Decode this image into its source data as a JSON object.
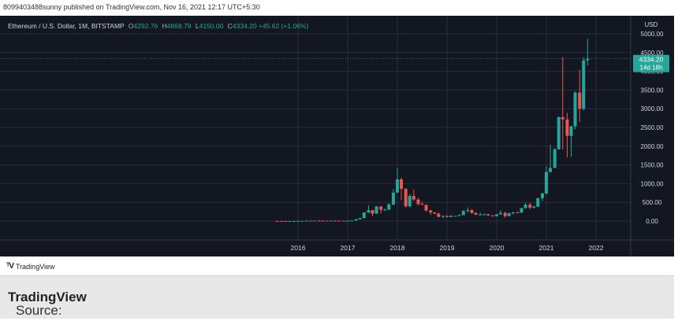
{
  "header": {
    "publisher": "8099403488sunny published on TradingView.com, Nov 16, 2021 12:17 UTC+5:30"
  },
  "legend": {
    "symbol": "Ethereum / U.S. Dollar, 1M, BITSTAMP",
    "o_label": "O",
    "o_value": "4292.76",
    "h_label": "H",
    "h_value": "4868.79",
    "l_label": "L",
    "l_value": "4150.00",
    "c_label": "C",
    "c_value": "4334.20",
    "change": "+45.62 (+1.06%)"
  },
  "price_tag": {
    "price": "4334.20",
    "countdown": "14d 18h"
  },
  "footer": {
    "brand": "TradingView"
  },
  "source": {
    "prefix": "Source: ",
    "name": "TradingView"
  },
  "colors": {
    "up": "#26a69a",
    "down": "#ef5350",
    "bg": "#131722",
    "grid": "#2a2e39",
    "text": "#d1d4dc"
  },
  "chart_data": {
    "type": "candlestick",
    "currency": "USD",
    "ylim": [
      -500,
      5300
    ],
    "yticks": [
      0,
      500,
      1000,
      1500,
      2000,
      2500,
      3000,
      3500,
      4000,
      4500,
      5000
    ],
    "ytick_labels": [
      "0.00",
      "500.00",
      "1000.00",
      "1500.00",
      "2000.00",
      "2500.00",
      "3000.00",
      "3500.00",
      "4000.00",
      "4500.00",
      "5000.00"
    ],
    "xticks": [
      "2016",
      "2017",
      "2018",
      "2019",
      "2020",
      "2021",
      "2022"
    ],
    "xtick_pos": [
      2016.0,
      2017.0,
      2018.0,
      2019.0,
      2020.0,
      2021.0,
      2022.0
    ],
    "candles": [
      {
        "t": 2015.58,
        "o": 2.8,
        "h": 3,
        "l": 0.5,
        "c": 1.2
      },
      {
        "t": 2015.67,
        "o": 1.2,
        "h": 1.5,
        "l": 0.6,
        "c": 0.9
      },
      {
        "t": 2015.75,
        "o": 0.9,
        "h": 1.0,
        "l": 0.5,
        "c": 0.6
      },
      {
        "t": 2015.83,
        "o": 0.6,
        "h": 1.2,
        "l": 0.4,
        "c": 0.9
      },
      {
        "t": 2015.92,
        "o": 0.9,
        "h": 1.0,
        "l": 0.8,
        "c": 0.9
      },
      {
        "t": 2016.0,
        "o": 0.9,
        "h": 2.8,
        "l": 0.9,
        "c": 2.2
      },
      {
        "t": 2016.08,
        "o": 2.2,
        "h": 6.5,
        "l": 2.0,
        "c": 6.2
      },
      {
        "t": 2016.17,
        "o": 6.2,
        "h": 15,
        "l": 6,
        "c": 11.2
      },
      {
        "t": 2016.25,
        "o": 11.2,
        "h": 12,
        "l": 7,
        "c": 8.8
      },
      {
        "t": 2016.33,
        "o": 8.8,
        "h": 14,
        "l": 8.5,
        "c": 14
      },
      {
        "t": 2016.42,
        "o": 14,
        "h": 21,
        "l": 11,
        "c": 12.5
      },
      {
        "t": 2016.5,
        "o": 12.5,
        "h": 15,
        "l": 9,
        "c": 11.7
      },
      {
        "t": 2016.58,
        "o": 11.7,
        "h": 12,
        "l": 10,
        "c": 11.5
      },
      {
        "t": 2016.67,
        "o": 11.5,
        "h": 13,
        "l": 11,
        "c": 13.2
      },
      {
        "t": 2016.75,
        "o": 13.2,
        "h": 13.5,
        "l": 11,
        "c": 11.2
      },
      {
        "t": 2016.83,
        "o": 11.2,
        "h": 11.5,
        "l": 8.5,
        "c": 8.6
      },
      {
        "t": 2016.92,
        "o": 8.6,
        "h": 8.8,
        "l": 6.3,
        "c": 8
      },
      {
        "t": 2017.0,
        "o": 8,
        "h": 11.5,
        "l": 7.9,
        "c": 10.7
      },
      {
        "t": 2017.08,
        "o": 10.7,
        "h": 16,
        "l": 10.5,
        "c": 16
      },
      {
        "t": 2017.17,
        "o": 16,
        "h": 55,
        "l": 15,
        "c": 50
      },
      {
        "t": 2017.25,
        "o": 50,
        "h": 83,
        "l": 43,
        "c": 80
      },
      {
        "t": 2017.33,
        "o": 80,
        "h": 230,
        "l": 78,
        "c": 230
      },
      {
        "t": 2017.42,
        "o": 230,
        "h": 420,
        "l": 210,
        "c": 290
      },
      {
        "t": 2017.5,
        "o": 290,
        "h": 300,
        "l": 130,
        "c": 200
      },
      {
        "t": 2017.58,
        "o": 200,
        "h": 400,
        "l": 190,
        "c": 390
      },
      {
        "t": 2017.67,
        "o": 390,
        "h": 400,
        "l": 200,
        "c": 300
      },
      {
        "t": 2017.75,
        "o": 300,
        "h": 340,
        "l": 280,
        "c": 305
      },
      {
        "t": 2017.83,
        "o": 305,
        "h": 480,
        "l": 295,
        "c": 445
      },
      {
        "t": 2017.92,
        "o": 445,
        "h": 860,
        "l": 420,
        "c": 760
      },
      {
        "t": 2018.0,
        "o": 760,
        "h": 1420,
        "l": 750,
        "c": 1115
      },
      {
        "t": 2018.08,
        "o": 1115,
        "h": 1160,
        "l": 560,
        "c": 860
      },
      {
        "t": 2018.17,
        "o": 860,
        "h": 880,
        "l": 360,
        "c": 395
      },
      {
        "t": 2018.25,
        "o": 395,
        "h": 720,
        "l": 365,
        "c": 670
      },
      {
        "t": 2018.33,
        "o": 670,
        "h": 840,
        "l": 540,
        "c": 575
      },
      {
        "t": 2018.42,
        "o": 575,
        "h": 625,
        "l": 420,
        "c": 455
      },
      {
        "t": 2018.5,
        "o": 455,
        "h": 515,
        "l": 430,
        "c": 433
      },
      {
        "t": 2018.58,
        "o": 433,
        "h": 435,
        "l": 250,
        "c": 283
      },
      {
        "t": 2018.67,
        "o": 283,
        "h": 300,
        "l": 170,
        "c": 232
      },
      {
        "t": 2018.75,
        "o": 232,
        "h": 235,
        "l": 190,
        "c": 197
      },
      {
        "t": 2018.83,
        "o": 197,
        "h": 225,
        "l": 100,
        "c": 113
      },
      {
        "t": 2018.92,
        "o": 113,
        "h": 158,
        "l": 82,
        "c": 133
      },
      {
        "t": 2019.0,
        "o": 133,
        "h": 160,
        "l": 100,
        "c": 107
      },
      {
        "t": 2019.08,
        "o": 107,
        "h": 165,
        "l": 102,
        "c": 136
      },
      {
        "t": 2019.17,
        "o": 136,
        "h": 145,
        "l": 127,
        "c": 141
      },
      {
        "t": 2019.25,
        "o": 141,
        "h": 185,
        "l": 140,
        "c": 160
      },
      {
        "t": 2019.33,
        "o": 160,
        "h": 290,
        "l": 154,
        "c": 270
      },
      {
        "t": 2019.42,
        "o": 270,
        "h": 365,
        "l": 230,
        "c": 292
      },
      {
        "t": 2019.5,
        "o": 292,
        "h": 320,
        "l": 195,
        "c": 217
      },
      {
        "t": 2019.58,
        "o": 217,
        "h": 235,
        "l": 165,
        "c": 171
      },
      {
        "t": 2019.67,
        "o": 171,
        "h": 225,
        "l": 152,
        "c": 180
      },
      {
        "t": 2019.75,
        "o": 180,
        "h": 198,
        "l": 155,
        "c": 182
      },
      {
        "t": 2019.83,
        "o": 182,
        "h": 196,
        "l": 140,
        "c": 151
      },
      {
        "t": 2019.92,
        "o": 151,
        "h": 153,
        "l": 116,
        "c": 130
      },
      {
        "t": 2020.0,
        "o": 130,
        "h": 185,
        "l": 127,
        "c": 180
      },
      {
        "t": 2020.08,
        "o": 180,
        "h": 288,
        "l": 175,
        "c": 218
      },
      {
        "t": 2020.17,
        "o": 218,
        "h": 252,
        "l": 90,
        "c": 134
      },
      {
        "t": 2020.25,
        "o": 134,
        "h": 227,
        "l": 130,
        "c": 207
      },
      {
        "t": 2020.33,
        "o": 207,
        "h": 245,
        "l": 180,
        "c": 232
      },
      {
        "t": 2020.42,
        "o": 232,
        "h": 250,
        "l": 215,
        "c": 225
      },
      {
        "t": 2020.5,
        "o": 225,
        "h": 350,
        "l": 222,
        "c": 345
      },
      {
        "t": 2020.58,
        "o": 345,
        "h": 490,
        "l": 335,
        "c": 435
      },
      {
        "t": 2020.67,
        "o": 435,
        "h": 490,
        "l": 310,
        "c": 360
      },
      {
        "t": 2020.75,
        "o": 360,
        "h": 415,
        "l": 335,
        "c": 386
      },
      {
        "t": 2020.83,
        "o": 386,
        "h": 620,
        "l": 372,
        "c": 612
      },
      {
        "t": 2020.92,
        "o": 612,
        "h": 754,
        "l": 535,
        "c": 737
      },
      {
        "t": 2021.0,
        "o": 737,
        "h": 1470,
        "l": 715,
        "c": 1314
      },
      {
        "t": 2021.08,
        "o": 1314,
        "h": 2040,
        "l": 1290,
        "c": 1418
      },
      {
        "t": 2021.17,
        "o": 1418,
        "h": 1945,
        "l": 1422,
        "c": 1918
      },
      {
        "t": 2021.25,
        "o": 1918,
        "h": 2795,
        "l": 1912,
        "c": 2775
      },
      {
        "t": 2021.33,
        "o": 2775,
        "h": 4380,
        "l": 1900,
        "c": 2715
      },
      {
        "t": 2021.42,
        "o": 2715,
        "h": 2890,
        "l": 1700,
        "c": 2275
      },
      {
        "t": 2021.5,
        "o": 2275,
        "h": 2550,
        "l": 1720,
        "c": 2530
      },
      {
        "t": 2021.58,
        "o": 2530,
        "h": 3470,
        "l": 2450,
        "c": 3430
      },
      {
        "t": 2021.67,
        "o": 3430,
        "h": 4030,
        "l": 2650,
        "c": 3000
      },
      {
        "t": 2021.75,
        "o": 3000,
        "h": 4375,
        "l": 2950,
        "c": 4290
      },
      {
        "t": 2021.83,
        "o": 4292.76,
        "h": 4868.79,
        "l": 4150,
        "c": 4334.2
      }
    ]
  }
}
